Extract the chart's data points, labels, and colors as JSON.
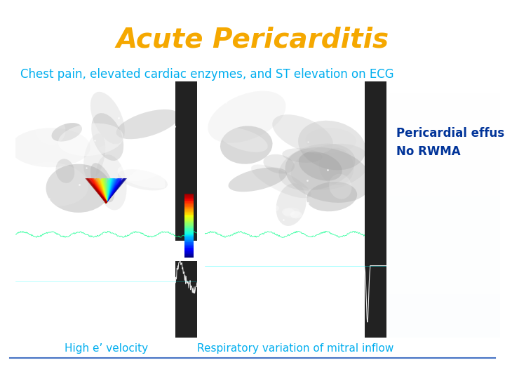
{
  "title": "Acute Pericarditis",
  "title_color": "#F5A800",
  "title_fontsize": 28,
  "subtitle": "Chest pain, elevated cardiac enzymes, and ST elevation on ECG",
  "subtitle_color": "#00AEEF",
  "subtitle_fontsize": 12,
  "side_text_line1": "Pericardial effusion",
  "side_text_line2": "No RWMA",
  "side_text_color": "#003399",
  "side_text_fontsize": 12,
  "caption_left_bottom": "High e’ velocity",
  "caption_right_bottom": "Respiratory variation of mitral inflow",
  "caption_color": "#00AEEF",
  "caption_fontsize": 11,
  "background_color": "#FFFFFF",
  "bottom_line_color": "#4472C4"
}
